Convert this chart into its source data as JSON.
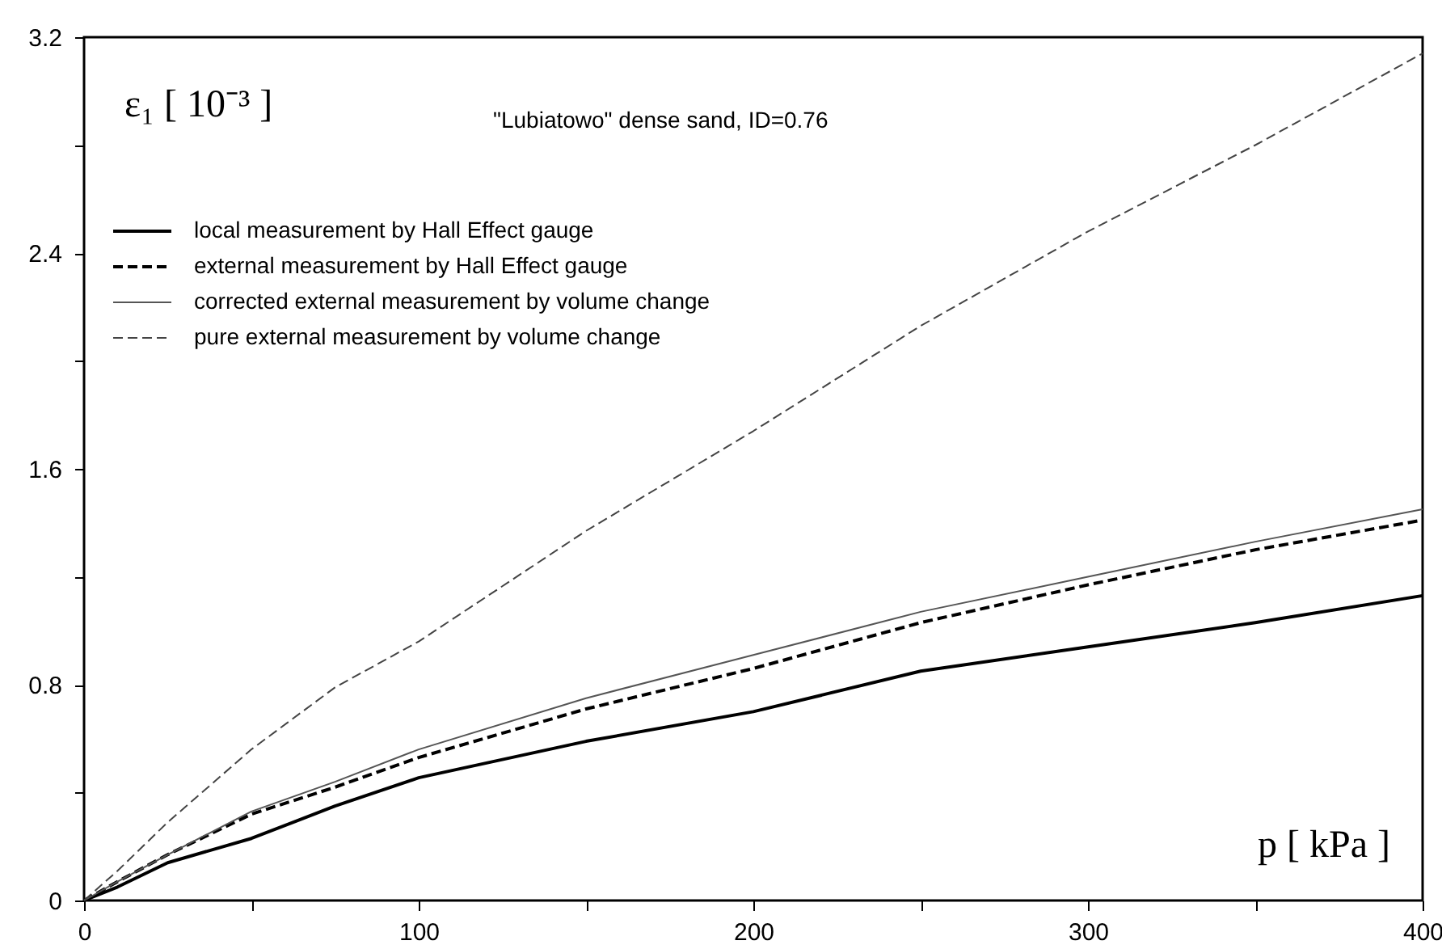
{
  "chart_data": {
    "type": "line",
    "xlabel": "p [ kPa ]",
    "ylabel": "ε₁ [ 10⁻³ ]",
    "annotations": [
      "\"Lubiatowo\" dense sand, ID=0.76"
    ],
    "x": [
      0,
      10,
      25,
      50,
      75,
      100,
      150,
      200,
      250,
      300,
      350,
      400
    ],
    "series": [
      {
        "name": "local measurement by Hall Effect gauge",
        "color": "#000000",
        "line_style": "solid",
        "values": [
          0,
          0.05,
          0.14,
          0.23,
          0.35,
          0.455,
          0.59,
          0.7,
          0.85,
          0.94,
          1.03,
          1.13
        ]
      },
      {
        "name": "external measurement by Hall Effect gauge",
        "color": "#000000",
        "line_style": "dashed",
        "values": [
          0,
          0.07,
          0.17,
          0.32,
          0.42,
          0.53,
          0.71,
          0.86,
          1.03,
          1.17,
          1.3,
          1.41
        ]
      },
      {
        "name": "corrected external measurement by volume change",
        "color": "#555555",
        "line_style": "solid",
        "values": [
          0,
          0.07,
          0.17,
          0.33,
          0.44,
          0.56,
          0.75,
          0.91,
          1.07,
          1.2,
          1.33,
          1.45
        ]
      },
      {
        "name": "pure external measurement by volume change",
        "color": "#444444",
        "line_style": "dashed",
        "values": [
          0,
          0.11,
          0.29,
          0.56,
          0.79,
          0.96,
          1.37,
          1.74,
          2.13,
          2.48,
          2.8,
          3.14
        ]
      }
    ],
    "xlim": [
      0,
      400
    ],
    "xticks": [
      0,
      {
        "value": 50,
        "label": null
      },
      100,
      {
        "value": 150,
        "label": null
      },
      200,
      {
        "value": 250,
        "label": null
      },
      300,
      {
        "value": 350,
        "label": null
      },
      400
    ],
    "ylim": [
      0,
      3.2
    ],
    "yticks": [
      0,
      {
        "value": 0.4,
        "label": null
      },
      0.8,
      {
        "value": 1.2,
        "label": null
      },
      1.6,
      {
        "value": 2.0,
        "label": null
      },
      2.4,
      {
        "value": 2.8,
        "label": null
      },
      3.2
    ],
    "grid": false,
    "legend": "top left"
  }
}
